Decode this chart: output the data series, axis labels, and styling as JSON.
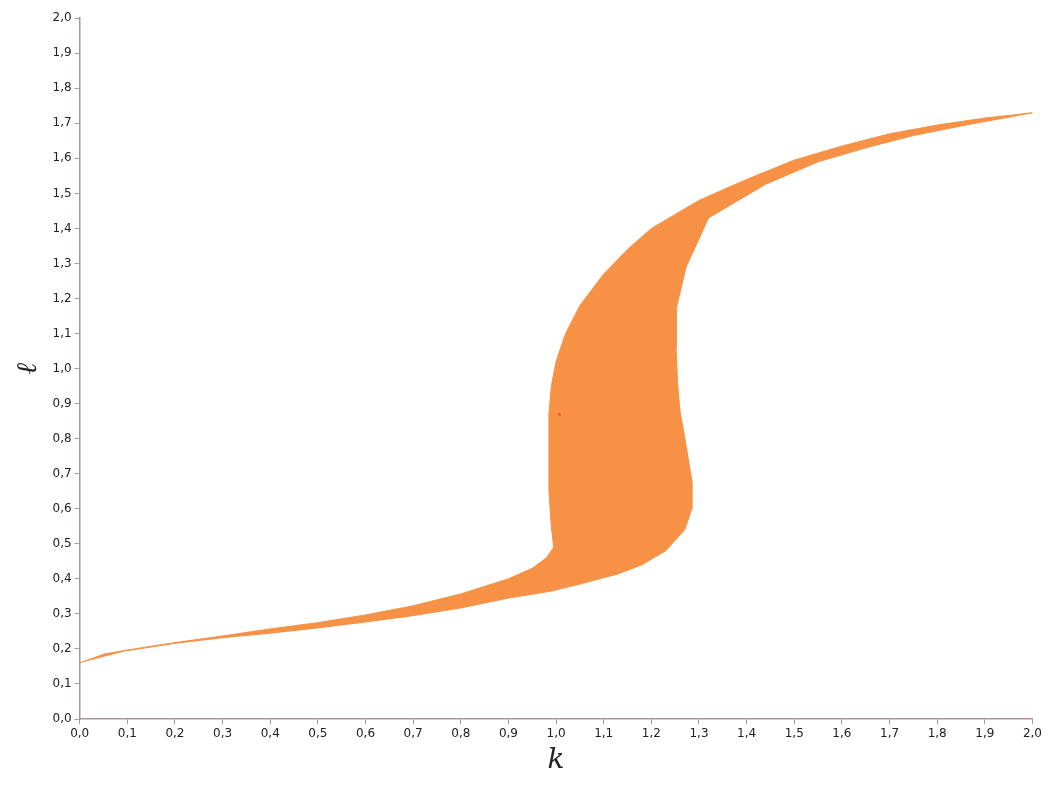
{
  "chart_data": {
    "type": "area",
    "xlabel": "k",
    "ylabel": "ℓ",
    "xlim": [
      0,
      2
    ],
    "ylim": [
      0,
      2
    ],
    "xticks": [
      {
        "value": 0,
        "label": "0,0"
      },
      {
        "value": 0.1,
        "label": "0,1"
      },
      {
        "value": 0.2,
        "label": "0,2"
      },
      {
        "value": 0.3,
        "label": "0,3"
      },
      {
        "value": 0.4,
        "label": "0,4"
      },
      {
        "value": 0.5,
        "label": "0,5"
      },
      {
        "value": 0.6,
        "label": "0,6"
      },
      {
        "value": 0.7,
        "label": "0,7"
      },
      {
        "value": 0.8,
        "label": "0,8"
      },
      {
        "value": 0.9,
        "label": "0,9"
      },
      {
        "value": 1,
        "label": "1,0"
      },
      {
        "value": 1.1,
        "label": "1,1"
      },
      {
        "value": 1.2,
        "label": "1,2"
      },
      {
        "value": 1.3,
        "label": "1,3"
      },
      {
        "value": 1.4,
        "label": "1,4"
      },
      {
        "value": 1.5,
        "label": "1,5"
      },
      {
        "value": 1.6,
        "label": "1,6"
      },
      {
        "value": 1.7,
        "label": "1,7"
      },
      {
        "value": 1.8,
        "label": "1,8"
      },
      {
        "value": 1.9,
        "label": "1,9"
      },
      {
        "value": 2,
        "label": "2,0"
      }
    ],
    "yticks": [
      {
        "value": 0,
        "label": "0,0"
      },
      {
        "value": 0.1,
        "label": "0,1"
      },
      {
        "value": 0.2,
        "label": "0,2"
      },
      {
        "value": 0.3,
        "label": "0,3"
      },
      {
        "value": 0.4,
        "label": "0,4"
      },
      {
        "value": 0.5,
        "label": "0,5"
      },
      {
        "value": 0.6,
        "label": "0,6"
      },
      {
        "value": 0.7,
        "label": "0,7"
      },
      {
        "value": 0.8,
        "label": "0,8"
      },
      {
        "value": 0.9,
        "label": "0,9"
      },
      {
        "value": 1,
        "label": "1,0"
      },
      {
        "value": 1.1,
        "label": "1,1"
      },
      {
        "value": 1.2,
        "label": "1,2"
      },
      {
        "value": 1.3,
        "label": "1,3"
      },
      {
        "value": 1.4,
        "label": "1,4"
      },
      {
        "value": 1.5,
        "label": "1,5"
      },
      {
        "value": 1.6,
        "label": "1,6"
      },
      {
        "value": 1.7,
        "label": "1,7"
      },
      {
        "value": 1.8,
        "label": "1,8"
      },
      {
        "value": 1.9,
        "label": "1,9"
      },
      {
        "value": 2,
        "label": "2,0"
      }
    ],
    "grid": false,
    "legend": false,
    "series": [
      {
        "color": "#f79146",
        "x": [
          0,
          0.05,
          0.1,
          0.2,
          0.3,
          0.4,
          0.5,
          0.6,
          0.7,
          0.8,
          0.9,
          0.95,
          0.98,
          0.995,
          0.99,
          0.985,
          0.985,
          0.985,
          0.99,
          1.0,
          1.02,
          1.05,
          1.1,
          1.15,
          1.2,
          1.3,
          1.4,
          1.5,
          1.6,
          1.7,
          1.8,
          1.9,
          2.0,
          1.86,
          1.75,
          1.65,
          1.55,
          1.44,
          1.32,
          1.273,
          1.252,
          1.252,
          1.255,
          1.26,
          1.273,
          1.285,
          1.285,
          1.27,
          1.23,
          1.18,
          1.13,
          1.05,
          0.99,
          0.9,
          0.8,
          0.7,
          0.6,
          0.5,
          0.4,
          0.3,
          0.2,
          0.1
        ],
        "values": [
          0.16,
          0.185,
          0.197,
          0.218,
          0.237,
          0.257,
          0.275,
          0.297,
          0.323,
          0.357,
          0.4,
          0.43,
          0.46,
          0.49,
          0.55,
          0.65,
          0.75,
          0.87,
          0.95,
          1.02,
          1.1,
          1.18,
          1.27,
          1.34,
          1.4,
          1.48,
          1.54,
          1.595,
          1.635,
          1.67,
          1.695,
          1.715,
          1.73,
          1.695,
          1.665,
          1.63,
          1.59,
          1.526,
          1.43,
          1.29,
          1.17,
          1.06,
          0.96,
          0.88,
          0.78,
          0.68,
          0.6,
          0.54,
          0.48,
          0.44,
          0.414,
          0.385,
          0.365,
          0.345,
          0.317,
          0.295,
          0.277,
          0.26,
          0.245,
          0.232,
          0.216,
          0.195
        ]
      },
      {
        "type": "scatter",
        "color": "#e8602c",
        "marker": "square",
        "x": [
          1.007
        ],
        "values": [
          0.869
        ]
      }
    ]
  }
}
